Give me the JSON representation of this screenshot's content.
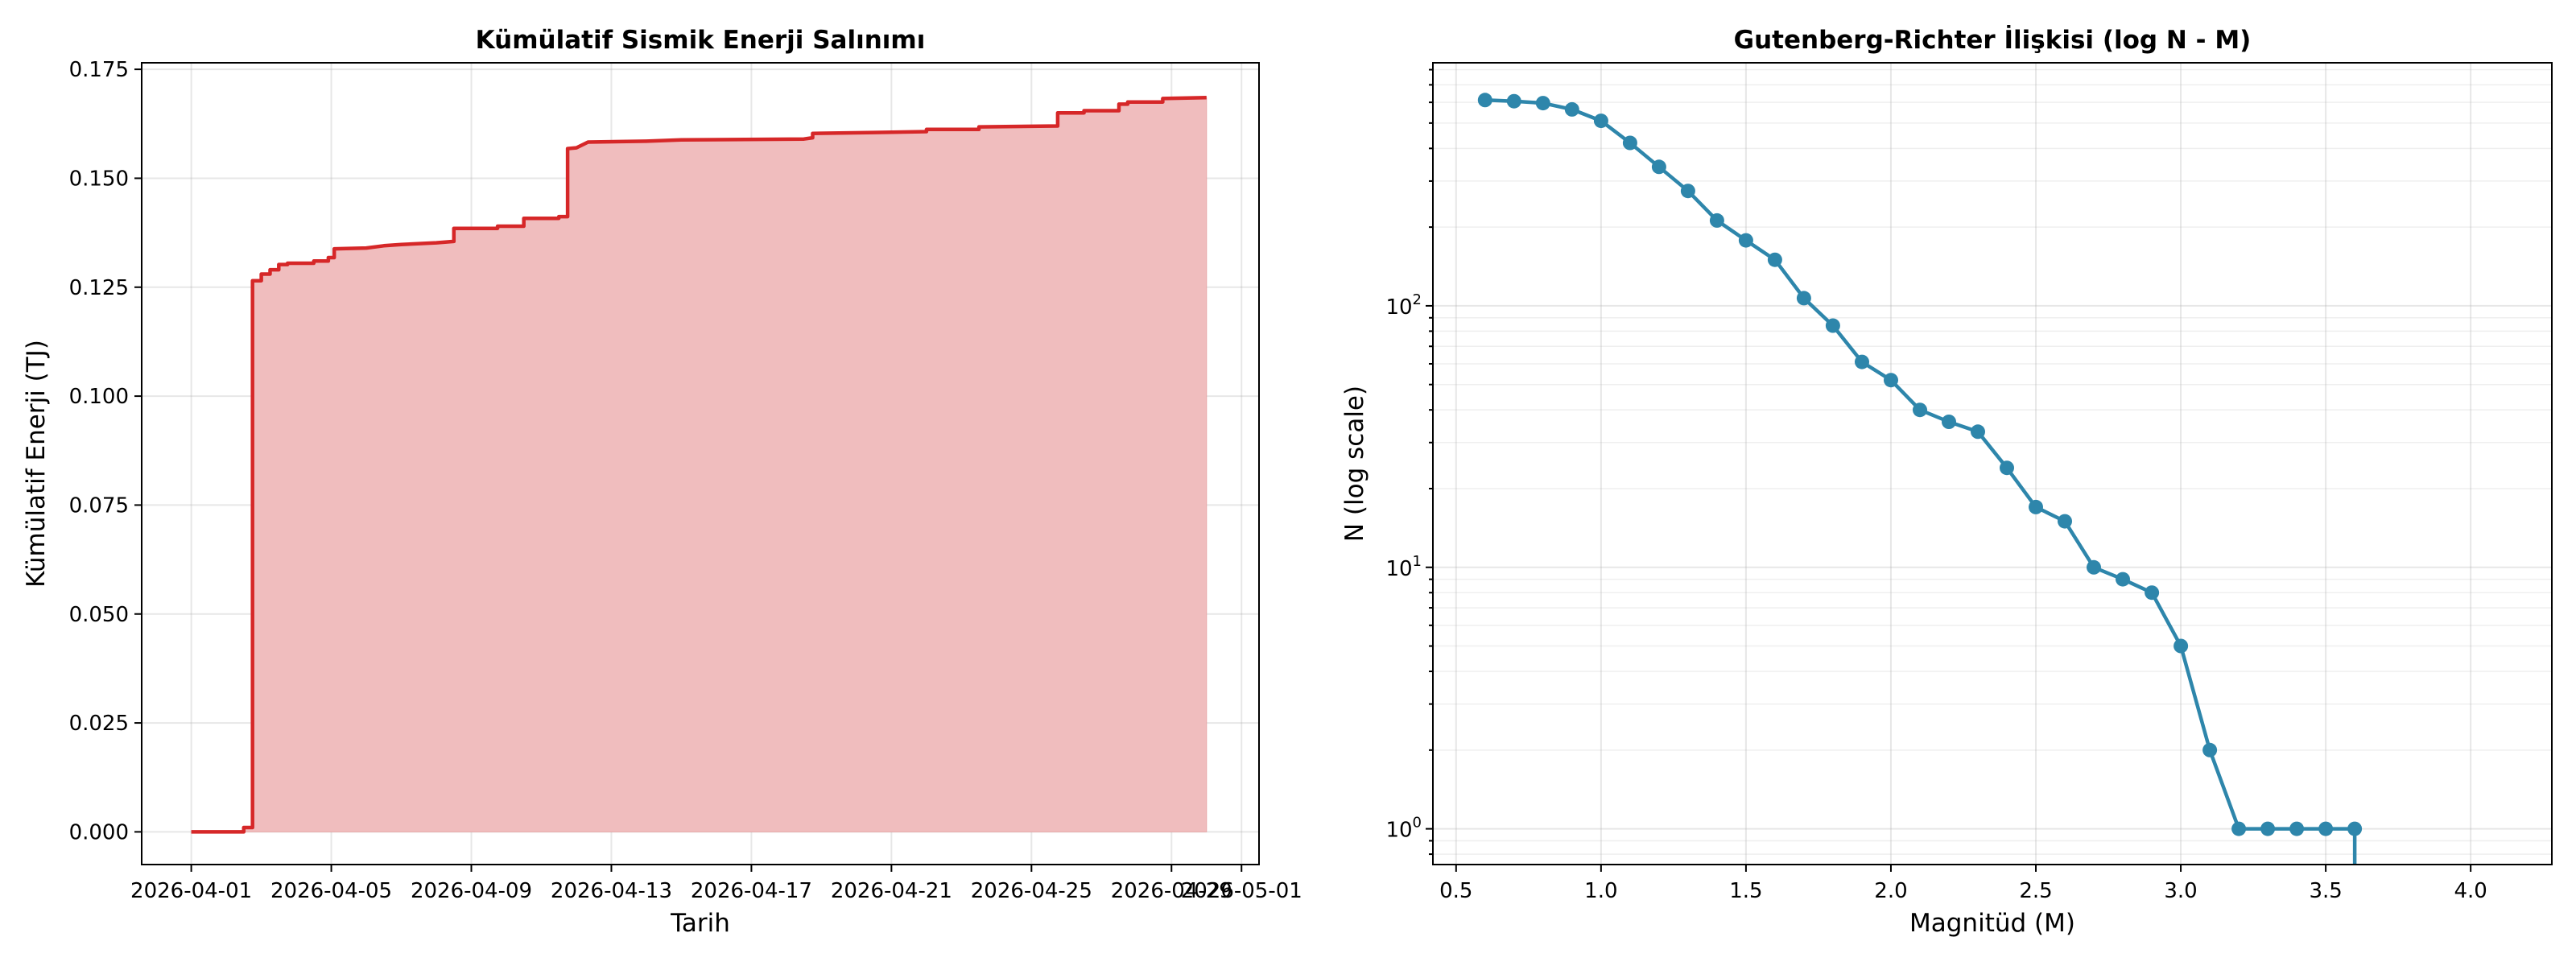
{
  "chart_data": [
    {
      "type": "area",
      "title": "Kümülatif Sismik Enerji Salınımı",
      "xlabel": "Tarih",
      "ylabel": "Kümülatif Enerji (TJ)",
      "x_type": "date",
      "xlim": [
        "2026-03-30T14:00",
        "2026-05-01T12:00"
      ],
      "ylim": [
        -0.0075,
        0.1765
      ],
      "x_ticks": [
        "2026-04-01",
        "2026-04-05",
        "2026-04-09",
        "2026-04-13",
        "2026-04-17",
        "2026-04-21",
        "2026-04-25",
        "2026-04-29",
        "2026-05-01"
      ],
      "y_ticks": [
        0.0,
        0.025,
        0.05,
        0.075,
        0.1,
        0.125,
        0.15,
        0.175
      ],
      "y_tick_labels": [
        "0.000",
        "0.025",
        "0.050",
        "0.075",
        "0.100",
        "0.125",
        "0.150",
        "0.175"
      ],
      "grid": true,
      "colors": {
        "line": "#d62728",
        "fill": "#f0bdbe"
      },
      "series": [
        {
          "x": [
            "2026-04-01T00:00",
            "2026-04-02T12:00",
            "2026-04-02T12:00",
            "2026-04-02T18:00",
            "2026-04-02T18:00",
            "2026-04-03T00:00",
            "2026-04-03T00:00",
            "2026-04-03T06:00",
            "2026-04-03T06:00",
            "2026-04-03T12:00",
            "2026-04-03T12:00",
            "2026-04-03T18:00",
            "2026-04-03T18:00",
            "2026-04-04T12:00",
            "2026-04-04T12:00",
            "2026-04-04T22:00",
            "2026-04-04T22:00",
            "2026-04-05T02:00",
            "2026-04-05T02:00",
            "2026-04-06T00:00",
            "2026-04-06T12:00",
            "2026-04-07T00:00",
            "2026-04-08T00:00",
            "2026-04-08T12:00",
            "2026-04-08T12:00",
            "2026-04-09T18:00",
            "2026-04-09T18:00",
            "2026-04-10T12:00",
            "2026-04-10T12:00",
            "2026-04-11T12:00",
            "2026-04-11T12:00",
            "2026-04-11T18:00",
            "2026-04-11T18:00",
            "2026-04-12T00:00",
            "2026-04-12T08:00",
            "2026-04-14T00:00",
            "2026-04-15T00:00",
            "2026-04-18T12:00",
            "2026-04-18T18:00",
            "2026-04-18T18:00",
            "2026-04-20T12:00",
            "2026-04-22T00:00",
            "2026-04-22T00:00",
            "2026-04-23T12:00",
            "2026-04-23T12:00",
            "2026-04-25T18:00",
            "2026-04-25T18:00",
            "2026-04-26T12:00",
            "2026-04-26T12:00",
            "2026-04-27T12:00",
            "2026-04-27T12:00",
            "2026-04-27T18:00",
            "2026-04-27T18:00",
            "2026-04-28T18:00",
            "2026-04-28T18:00",
            "2026-04-30T00:00"
          ],
          "y": [
            0.0,
            0.0,
            0.001,
            0.001,
            0.1265,
            0.1265,
            0.128,
            0.128,
            0.129,
            0.129,
            0.1302,
            0.1302,
            0.1305,
            0.1305,
            0.131,
            0.131,
            0.1318,
            0.1318,
            0.1338,
            0.134,
            0.1345,
            0.1348,
            0.1352,
            0.1355,
            0.1385,
            0.1385,
            0.139,
            0.139,
            0.1408,
            0.1408,
            0.1412,
            0.1412,
            0.1568,
            0.157,
            0.1583,
            0.1585,
            0.1588,
            0.159,
            0.1593,
            0.1603,
            0.1605,
            0.1607,
            0.1612,
            0.1612,
            0.1618,
            0.162,
            0.165,
            0.165,
            0.1655,
            0.1655,
            0.167,
            0.167,
            0.1675,
            0.1675,
            0.1683,
            0.1685
          ]
        }
      ]
    },
    {
      "type": "line",
      "title": "Gutenberg-Richter İlişkisi (log N - M)",
      "xlabel": "Magnitüd (M)",
      "ylabel": "N (log scale)",
      "xlim": [
        0.42,
        4.28
      ],
      "ylim": [
        0.73,
        850
      ],
      "y_scale": "log",
      "x_ticks": [
        0.5,
        1.0,
        1.5,
        2.0,
        2.5,
        3.0,
        3.5,
        4.0
      ],
      "x_tick_labels": [
        "0.5",
        "1.0",
        "1.5",
        "2.0",
        "2.5",
        "3.0",
        "3.5",
        "4.0"
      ],
      "y_ticks": [
        1,
        10,
        100
      ],
      "y_tick_labels": [
        {
          "base": "10",
          "exp": "0"
        },
        {
          "base": "10",
          "exp": "1"
        },
        {
          "base": "10",
          "exp": "2"
        }
      ],
      "grid": true,
      "colors": {
        "line": "#2e86ab",
        "marker": "#2e86ab"
      },
      "series": [
        {
          "x": [
            0.6,
            0.7,
            0.8,
            0.9,
            1.0,
            1.1,
            1.2,
            1.3,
            1.4,
            1.5,
            1.6,
            1.7,
            1.8,
            1.9,
            2.0,
            2.1,
            2.2,
            2.3,
            2.4,
            2.5,
            2.6,
            2.7,
            2.8,
            2.9,
            3.0,
            3.1,
            3.2,
            3.3,
            3.4,
            3.5,
            3.6
          ],
          "y": [
            612,
            606,
            596,
            564,
            510,
            420,
            340,
            275,
            212,
            178,
            150,
            107,
            84,
            61,
            52,
            40,
            36,
            33,
            24,
            17,
            15,
            10,
            9,
            8,
            5,
            2,
            1,
            1,
            1,
            1,
            1
          ]
        }
      ],
      "tail": {
        "x": 3.6,
        "from": 1,
        "to_below_axis": true
      }
    }
  ]
}
